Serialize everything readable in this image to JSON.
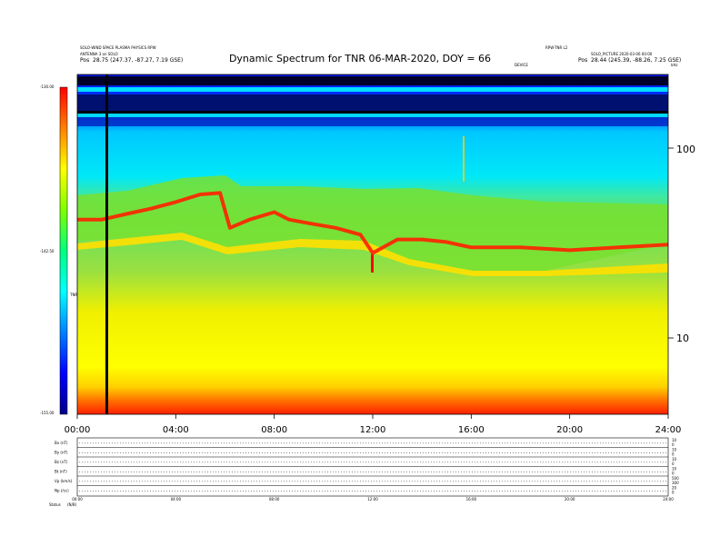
{
  "title": "Dynamic Spectrum for TNR 06-MAR-2020, DOY = 66",
  "header": {
    "left_line1": "SOLO-WIND SPACE PLASMA PHYSICS RPW",
    "left_line2": "ANTENNA 3 on SOLO",
    "left_pos_label": "Pos",
    "left_pos_value": "28.75 (247.37, -87.27, 7.19 GSE)",
    "center_small": "DEVICE",
    "right_line1": "RPW-TNR L2",
    "right_line2": "SOLO_PICTURE 2020-03-06 00:00",
    "right_pos_label": "Pos",
    "right_pos_value": "28.44 (245.39, -88.26, 7.25 GSE)",
    "corner": "kHz"
  },
  "colorbar": {
    "max_label": "-130.00",
    "mid_label": "-142.50",
    "min_label": "-155.00",
    "unit_label": "TNR",
    "colors": [
      "#ff0000",
      "#ff8000",
      "#ffff00",
      "#80ff00",
      "#00ff80",
      "#00ffff",
      "#0080ff",
      "#0000ff",
      "#00008b"
    ]
  },
  "chart_data": {
    "type": "heatmap",
    "title": "Dynamic Spectrum for TNR 06-MAR-2020, DOY = 66",
    "xlabel": "",
    "ylabel": "",
    "x_ticks": [
      "00:00",
      "04:00",
      "08:00",
      "12:00",
      "16:00",
      "20:00",
      "24:00"
    ],
    "x_range_hours": [
      0,
      24
    ],
    "y_scale": "log",
    "y_ticks": [
      10,
      100
    ],
    "y_range_khz": [
      4,
      270
    ],
    "color_range_db": [
      -155.0,
      -130.0
    ],
    "intensity_ridge_khz": [
      [
        0,
        42
      ],
      [
        1,
        42
      ],
      [
        2,
        45
      ],
      [
        3,
        48
      ],
      [
        4,
        52
      ],
      [
        5,
        57
      ],
      [
        5.8,
        58
      ],
      [
        6.2,
        38
      ],
      [
        7,
        42
      ],
      [
        8,
        46
      ],
      [
        8.6,
        42
      ],
      [
        9.5,
        40
      ],
      [
        10.5,
        38
      ],
      [
        11.5,
        35
      ],
      [
        12,
        28
      ],
      [
        13,
        33
      ],
      [
        14,
        33
      ],
      [
        15,
        32
      ],
      [
        16,
        30
      ],
      [
        18,
        30
      ],
      [
        20,
        29
      ],
      [
        22,
        30
      ],
      [
        24,
        31
      ]
    ],
    "data_gap_hour": 1.2
  },
  "panels": {
    "rows": [
      {
        "label": "Bx (nT)",
        "ticks": [
          "10",
          "0"
        ]
      },
      {
        "label": "By (nT)",
        "ticks": [
          "10",
          "0"
        ]
      },
      {
        "label": "Bz (nT)",
        "ticks": [
          "10",
          "0"
        ]
      },
      {
        "label": "Bt (nT)",
        "ticks": [
          "10",
          "0"
        ]
      },
      {
        "label": "Vp (km/s)",
        "ticks": [
          "500",
          "300"
        ]
      },
      {
        "label": "Np (/cc)",
        "ticks": [
          "20",
          "0"
        ]
      }
    ],
    "x_ticks": [
      "00:00",
      "04:00",
      "08:00",
      "12:00",
      "16:00",
      "20:00",
      "24:00"
    ],
    "status_label": "Status",
    "status_value": "(N/B)"
  }
}
